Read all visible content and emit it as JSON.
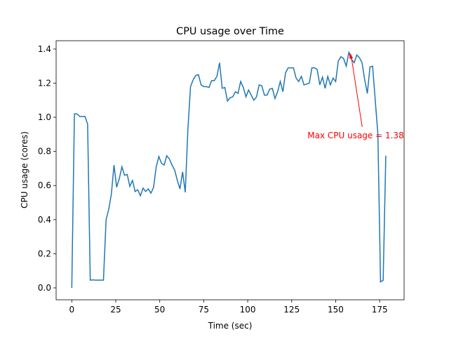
{
  "chart_data": {
    "type": "line",
    "title": "CPU usage over Time",
    "x_label": "Time (sec)",
    "y_label": "CPU usage (cores)",
    "x": [
      0,
      1.5,
      3,
      4.5,
      6,
      7.5,
      9,
      10.5,
      12,
      13.5,
      15,
      16.5,
      18,
      19.5,
      21,
      22.5,
      24,
      25.5,
      27,
      28.5,
      30,
      31.5,
      33,
      34.5,
      36,
      37.5,
      39,
      40.5,
      42,
      43.5,
      45,
      46.5,
      48,
      49.5,
      51,
      52.5,
      54,
      55.5,
      57,
      58.5,
      60,
      61.5,
      63,
      64.5,
      66,
      67.5,
      69,
      70.5,
      72,
      73.5,
      75,
      76.5,
      78,
      79.5,
      81,
      82.5,
      84,
      85.5,
      87,
      88.5,
      90,
      91.5,
      93,
      94.5,
      96,
      97.5,
      99,
      100.5,
      102,
      103.5,
      105,
      106.5,
      108,
      109.5,
      111,
      112.5,
      114,
      115.5,
      117,
      118.5,
      120,
      121.5,
      123,
      124.5,
      126,
      127.5,
      129,
      130.5,
      132,
      133.5,
      135,
      136.5,
      138,
      139.5,
      141,
      142.5,
      144,
      145.5,
      147,
      148.5,
      150,
      151.5,
      153,
      154.5,
      156,
      157.5,
      159,
      160.5,
      162,
      163.5,
      165,
      166.5,
      168,
      169.5,
      171,
      172.5,
      174,
      175.5,
      177,
      178.5
    ],
    "series": [
      {
        "color": "#1f77b4",
        "values": [
          0.0,
          1.02,
          1.02,
          1.005,
          1.005,
          1.005,
          0.96,
          0.045,
          0.047,
          0.045,
          0.045,
          0.045,
          0.045,
          0.4,
          0.46,
          0.55,
          0.72,
          0.59,
          0.64,
          0.71,
          0.66,
          0.665,
          0.595,
          0.63,
          0.565,
          0.575,
          0.54,
          0.585,
          0.565,
          0.58,
          0.555,
          0.59,
          0.71,
          0.77,
          0.73,
          0.72,
          0.775,
          0.755,
          0.72,
          0.69,
          0.63,
          0.58,
          0.68,
          0.56,
          0.93,
          1.18,
          1.22,
          1.245,
          1.25,
          1.19,
          1.18,
          1.18,
          1.175,
          1.215,
          1.215,
          1.24,
          1.32,
          1.17,
          1.175,
          1.095,
          1.115,
          1.12,
          1.15,
          1.14,
          1.21,
          1.175,
          1.12,
          1.16,
          1.13,
          1.1,
          1.12,
          1.19,
          1.185,
          1.13,
          1.13,
          1.165,
          1.17,
          1.11,
          1.15,
          1.21,
          1.15,
          1.26,
          1.29,
          1.29,
          1.29,
          1.23,
          1.21,
          1.24,
          1.19,
          1.195,
          1.2,
          1.29,
          1.29,
          1.28,
          1.19,
          1.235,
          1.17,
          1.24,
          1.19,
          1.23,
          1.21,
          1.33,
          1.355,
          1.345,
          1.3,
          1.38,
          1.34,
          1.32,
          1.365,
          1.35,
          1.32,
          1.22,
          1.14,
          1.295,
          1.3,
          1.1,
          0.9,
          0.035,
          0.045,
          0.775
        ]
      }
    ],
    "annotation": {
      "text": "Max CPU usage = 1.38",
      "color": "red"
    },
    "xlim": [
      -8.9,
      188.9
    ],
    "ylim": [
      -0.07,
      1.449
    ],
    "xticks": [
      0,
      25,
      50,
      75,
      100,
      125,
      150,
      175
    ],
    "yticks": [
      {
        "value": 0,
        "label": "0.0"
      },
      0.2,
      0.4,
      0.6,
      0.8,
      {
        "value": 1,
        "label": "1.0"
      },
      1.2,
      1.4
    ]
  }
}
